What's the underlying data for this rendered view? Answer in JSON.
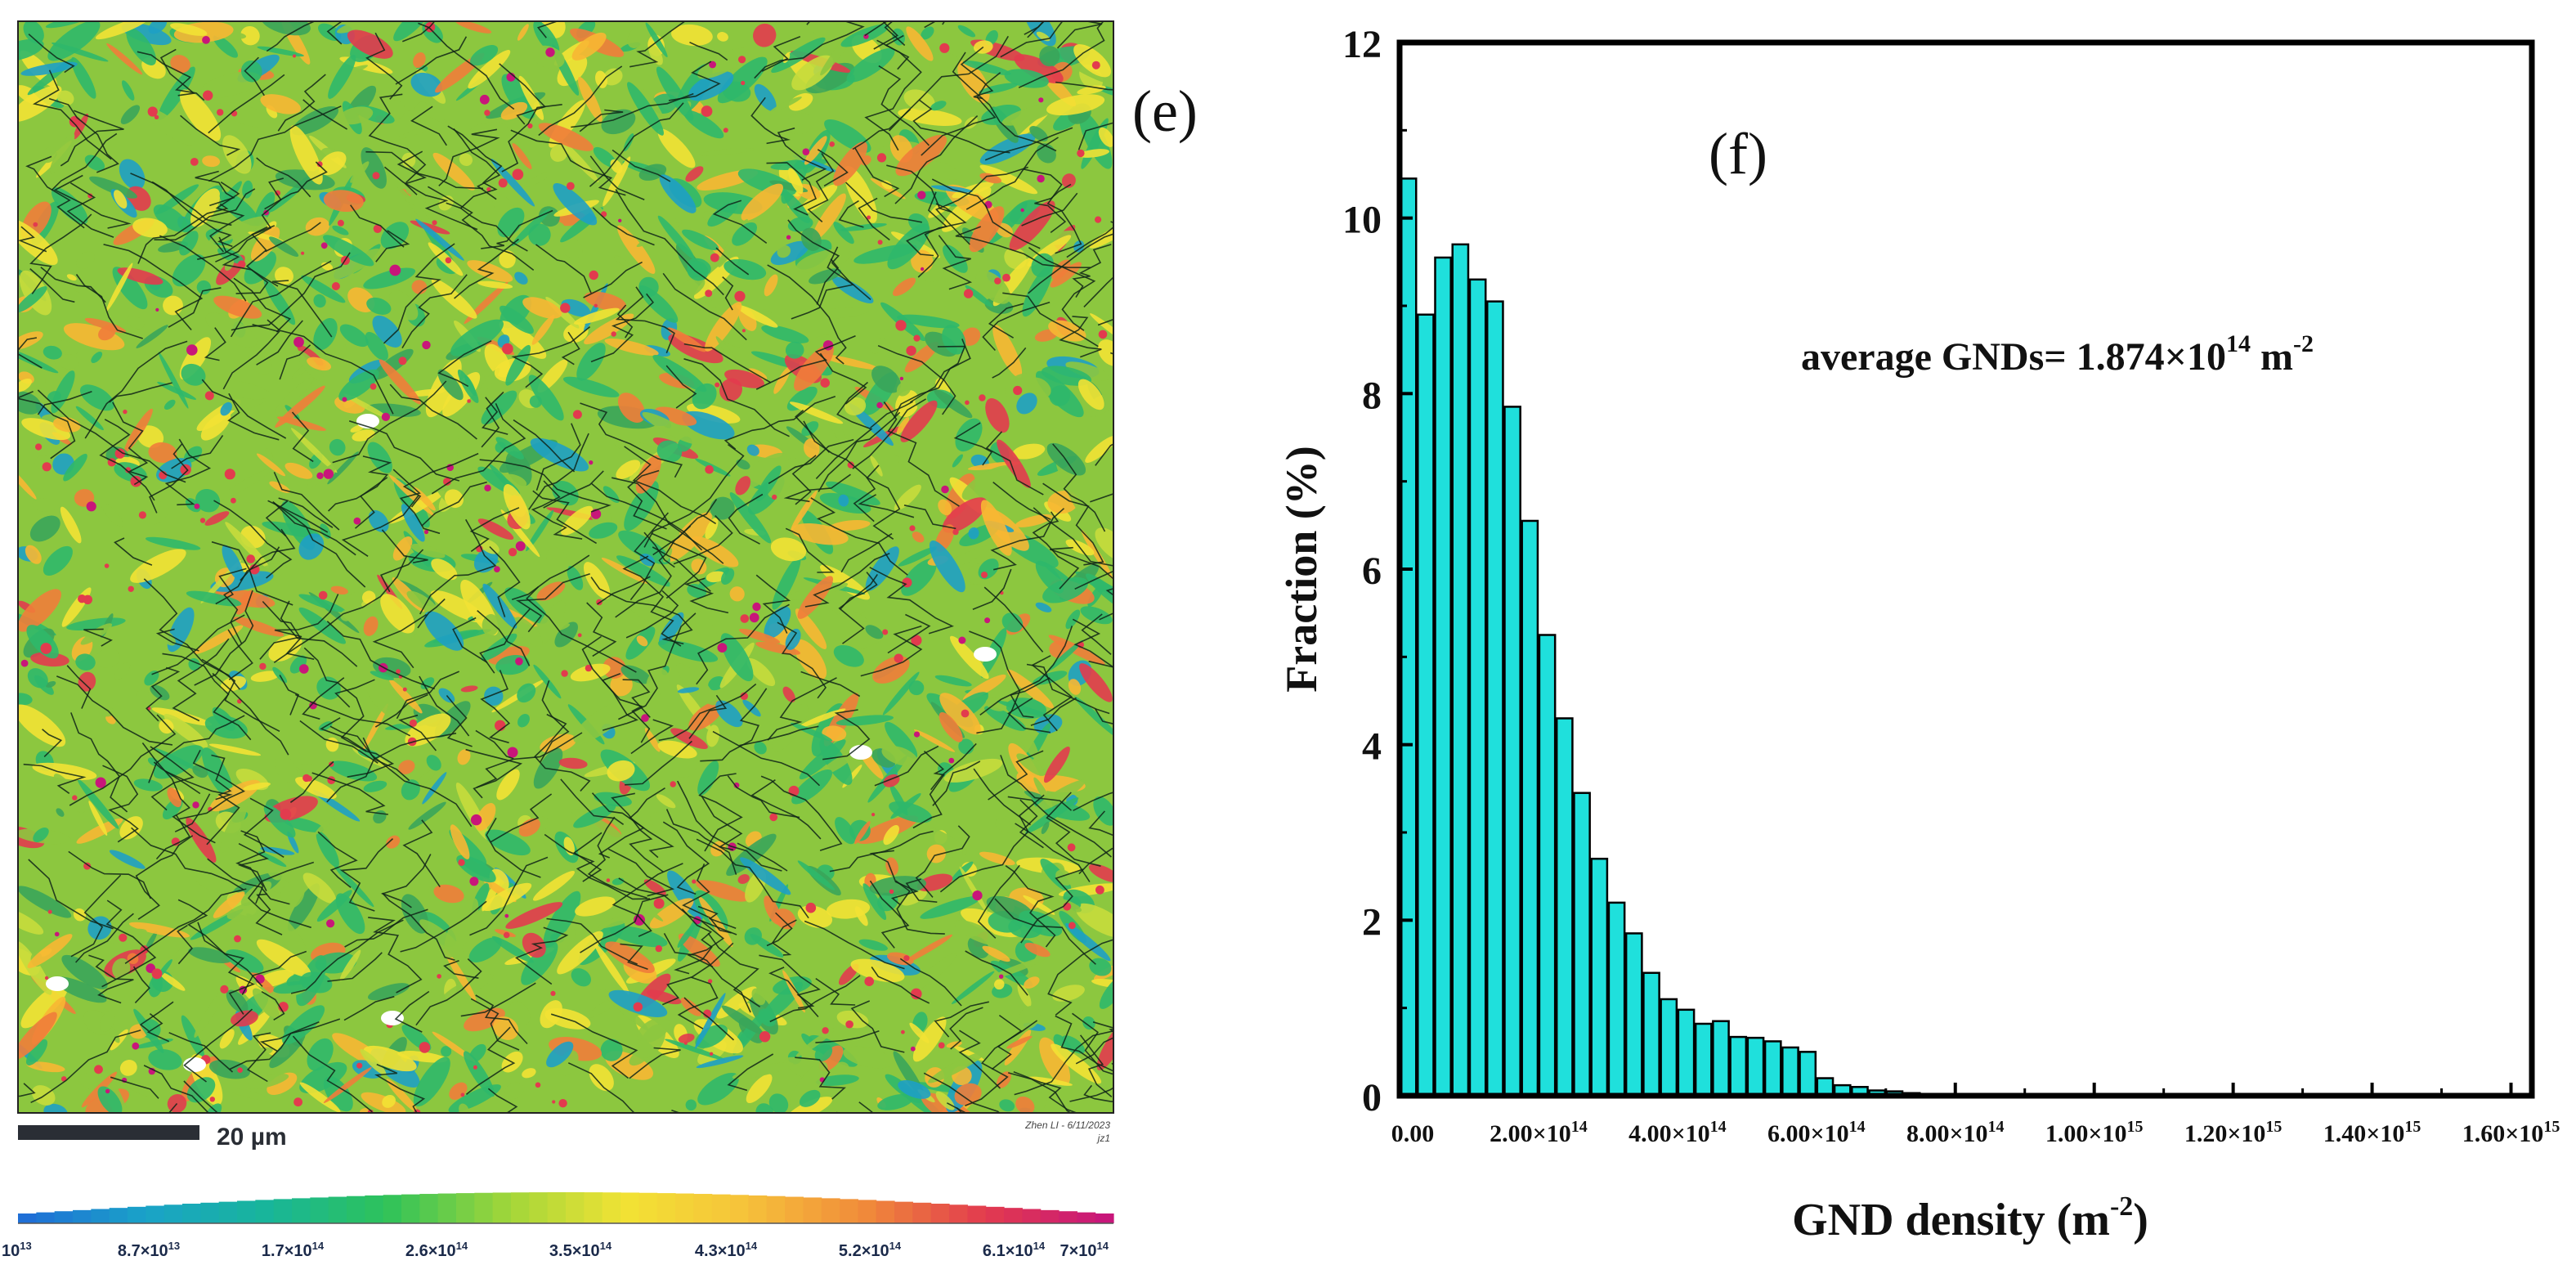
{
  "panel_e": {
    "label": "(e)",
    "scale_bar": {
      "text": "20 µm"
    },
    "watermark": {
      "line1": "Zhen LI - 6/11/2023",
      "line2": "jz1"
    },
    "colorbar": {
      "colors": [
        "#1f6fd6",
        "#1aa3c8",
        "#18b59a",
        "#2ec25a",
        "#9fd63a",
        "#f2e234",
        "#f6c23a",
        "#f08a3a",
        "#e23b4e",
        "#c8167a"
      ],
      "tick_labels": [
        {
          "base": "10",
          "exp": "13"
        },
        {
          "base": "8.7×10",
          "exp": "13"
        },
        {
          "base": "1.7×10",
          "exp": "14"
        },
        {
          "base": "2.6×10",
          "exp": "14"
        },
        {
          "base": "3.5×10",
          "exp": "14"
        },
        {
          "base": "4.3×10",
          "exp": "14"
        },
        {
          "base": "5.2×10",
          "exp": "14"
        },
        {
          "base": "6.1×10",
          "exp": "14"
        },
        {
          "base": "7×10",
          "exp": "14"
        }
      ]
    },
    "map_colors": [
      "#2fb86a",
      "#8cc73f",
      "#d8d63a",
      "#f2e234",
      "#f7b733",
      "#ef7d3a",
      "#e23b4e",
      "#1ea0c4",
      "#3aa55a",
      "#c7dc3c"
    ]
  },
  "chart_data": {
    "type": "bar",
    "panel_label": "(f)",
    "title": "",
    "xlabel": "GND density (m",
    "xlabel_exp": "-2",
    "xlabel_close": ")",
    "ylabel": "Fraction (%)",
    "xlim": [
      0,
      1630000000000000.0
    ],
    "ylim": [
      0,
      12
    ],
    "bin_width": 25000000000000.0,
    "bin_starts": [
      0,
      25000000000000.0,
      50000000000000.0,
      75000000000000.0,
      100000000000000.0,
      125000000000000.0,
      150000000000000.0,
      175000000000000.0,
      200000000000000.0,
      225000000000000.0,
      250000000000000.0,
      275000000000000.0,
      300000000000000.0,
      325000000000000.0,
      350000000000000.0,
      375000000000000.0,
      400000000000000.0,
      425000000000000.0,
      450000000000000.0,
      475000000000000.0,
      500000000000000.0,
      525000000000000.0,
      550000000000000.0,
      575000000000000.0,
      600000000000000.0,
      625000000000000.0,
      650000000000000.0,
      675000000000000.0,
      700000000000000.0,
      725000000000000.0,
      750000000000000.0,
      775000000000000.0,
      800000000000000.0,
      825000000000000.0,
      850000000000000.0,
      875000000000000.0,
      900000000000000.0,
      925000000000000.0,
      950000000000000.0,
      975000000000000.0,
      1000000000000000.0,
      1025000000000000.0,
      1050000000000000.0,
      1075000000000000.0,
      1100000000000000.0,
      1125000000000000.0,
      1150000000000000.0,
      1175000000000000.0,
      1200000000000000.0,
      1225000000000000.0,
      1250000000000000.0,
      1275000000000000.0,
      1300000000000000.0,
      1325000000000000.0,
      1350000000000000.0,
      1375000000000000.0,
      1400000000000000.0,
      1425000000000000.0,
      1450000000000000.0,
      1475000000000000.0,
      1500000000000000.0,
      1525000000000000.0,
      1550000000000000.0,
      1575000000000000.0
    ],
    "values": [
      10.45,
      8.9,
      9.55,
      9.7,
      9.3,
      9.05,
      7.85,
      6.55,
      5.25,
      4.3,
      3.45,
      2.7,
      2.2,
      1.85,
      1.4,
      1.1,
      0.98,
      0.82,
      0.85,
      0.67,
      0.66,
      0.62,
      0.55,
      0.5,
      0.2,
      0.12,
      0.1,
      0.06,
      0.05,
      0.03,
      0.02,
      0.01,
      0.01,
      0.01,
      0.005,
      0.005,
      0.005,
      0.005,
      0.005,
      0.005,
      0.005,
      0.005,
      0.005,
      0.005,
      0.005,
      0.005,
      0.005,
      0.005,
      0.005,
      0.005,
      0.005,
      0.005,
      0.005,
      0.005,
      0.005,
      0.005,
      0.005,
      0.005,
      0.005,
      0.005,
      0.005,
      0.005,
      0.005,
      0.005
    ],
    "bar_color": "#1fe0dc",
    "y_ticks": [
      0,
      2,
      4,
      6,
      8,
      10,
      12
    ],
    "x_ticks": [
      {
        "value": 0,
        "base": "0.00",
        "exp": ""
      },
      {
        "value": 200000000000000.0,
        "base": "2.00×10",
        "exp": "14"
      },
      {
        "value": 400000000000000.0,
        "base": "4.00×10",
        "exp": "14"
      },
      {
        "value": 600000000000000.0,
        "base": "6.00×10",
        "exp": "14"
      },
      {
        "value": 800000000000000.0,
        "base": "8.00×10",
        "exp": "14"
      },
      {
        "value": 1000000000000000.0,
        "base": "1.00×10",
        "exp": "15"
      },
      {
        "value": 1200000000000000.0,
        "base": "1.20×10",
        "exp": "15"
      },
      {
        "value": 1400000000000000.0,
        "base": "1.40×10",
        "exp": "15"
      },
      {
        "value": 1600000000000000.0,
        "base": "1.60×10",
        "exp": "15"
      }
    ],
    "annotation": {
      "base": "average GNDs= 1.874×10",
      "exp": "14",
      "tail": " m",
      "tail_exp": "-2"
    }
  }
}
